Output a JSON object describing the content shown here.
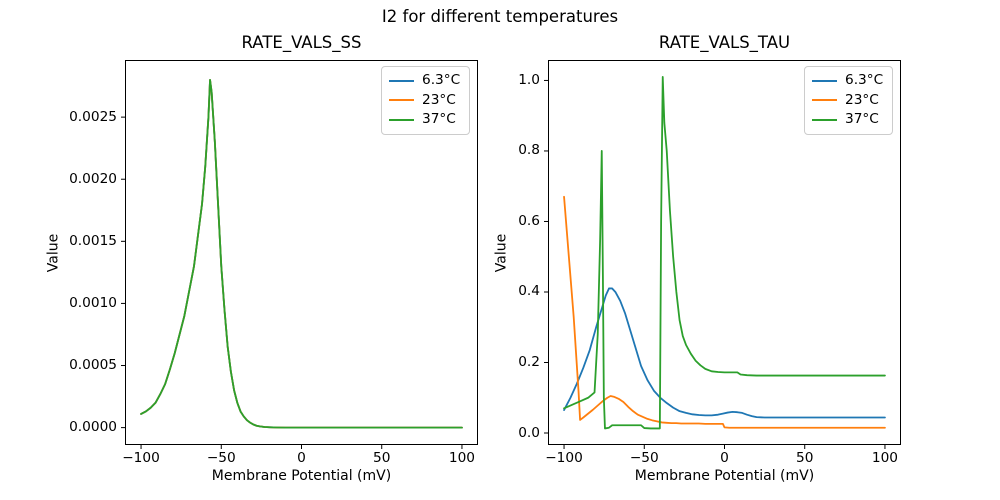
{
  "figure": {
    "suptitle": "I2 for different temperatures",
    "background": "#ffffff"
  },
  "colors": {
    "series_blue": "#1f77b4",
    "series_orange": "#ff7f0e",
    "series_green": "#2ca02c",
    "axis": "#000000",
    "legend_border": "#cccccc",
    "text": "#000000"
  },
  "chart_data": [
    {
      "type": "line",
      "title": "RATE_VALS_SS",
      "xlabel": "Membrane Potential (mV)",
      "ylabel": "Value",
      "xlim": [
        -110,
        110
      ],
      "ylim": [
        -0.00014,
        0.00296
      ],
      "xticks": [
        -100,
        -50,
        0,
        50,
        100
      ],
      "xtick_labels": [
        "−100",
        "−50",
        "0",
        "50",
        "100"
      ],
      "yticks": [
        0,
        0.0005,
        0.001,
        0.0015,
        0.002,
        0.0025
      ],
      "ytick_labels": [
        "0.0000",
        "0.0005",
        "0.0010",
        "0.0015",
        "0.0020",
        "0.0025"
      ],
      "grid": false,
      "legend_position": "upper right",
      "legend_entries": [
        "6.3°C",
        "23°C",
        "37°C"
      ],
      "note": "All three temperature curves overlap exactly; the green 37°C curve is drawn last and hides the others. Bell-shaped peak of ~0.0028 at about −57 mV, ~0 above −25 mV.",
      "series": [
        {
          "name": "6.3°C",
          "color": "#1f77b4",
          "x": [
            -100,
            -97,
            -94,
            -91,
            -88,
            -85,
            -82,
            -79,
            -76,
            -73,
            -70,
            -67,
            -64,
            -62,
            -60,
            -58,
            -57,
            -56,
            -54,
            -52,
            -50,
            -48,
            -46,
            -44,
            -42,
            -40,
            -38,
            -36,
            -34,
            -32,
            -30,
            -28,
            -26,
            -23,
            -20,
            -15,
            -10,
            -5,
            0,
            10,
            20,
            30,
            40,
            50,
            60,
            70,
            80,
            90,
            100
          ],
          "y": [
            0.00011,
            0.00013,
            0.00016,
            0.0002,
            0.00027,
            0.00035,
            0.00047,
            0.0006,
            0.00075,
            0.0009,
            0.0011,
            0.0013,
            0.0016,
            0.0018,
            0.0021,
            0.0025,
            0.0028,
            0.0027,
            0.0023,
            0.0018,
            0.0013,
            0.00095,
            0.00065,
            0.00045,
            0.0003,
            0.0002,
            0.00013,
            9e-05,
            6e-05,
            4e-05,
            2.5e-05,
            1.5e-05,
            1e-05,
            5e-06,
            3e-06,
            1e-06,
            0,
            0,
            0,
            0,
            0,
            0,
            0,
            0,
            0,
            0,
            0,
            0,
            0
          ]
        },
        {
          "name": "23°C",
          "color": "#ff7f0e",
          "x": [
            -100,
            -97,
            -94,
            -91,
            -88,
            -85,
            -82,
            -79,
            -76,
            -73,
            -70,
            -67,
            -64,
            -62,
            -60,
            -58,
            -57,
            -56,
            -54,
            -52,
            -50,
            -48,
            -46,
            -44,
            -42,
            -40,
            -38,
            -36,
            -34,
            -32,
            -30,
            -28,
            -26,
            -23,
            -20,
            -15,
            -10,
            -5,
            0,
            10,
            20,
            30,
            40,
            50,
            60,
            70,
            80,
            90,
            100
          ],
          "y": [
            0.00011,
            0.00013,
            0.00016,
            0.0002,
            0.00027,
            0.00035,
            0.00047,
            0.0006,
            0.00075,
            0.0009,
            0.0011,
            0.0013,
            0.0016,
            0.0018,
            0.0021,
            0.0025,
            0.0028,
            0.0027,
            0.0023,
            0.0018,
            0.0013,
            0.00095,
            0.00065,
            0.00045,
            0.0003,
            0.0002,
            0.00013,
            9e-05,
            6e-05,
            4e-05,
            2.5e-05,
            1.5e-05,
            1e-05,
            5e-06,
            3e-06,
            1e-06,
            0,
            0,
            0,
            0,
            0,
            0,
            0,
            0,
            0,
            0,
            0,
            0,
            0
          ]
        },
        {
          "name": "37°C",
          "color": "#2ca02c",
          "x": [
            -100,
            -97,
            -94,
            -91,
            -88,
            -85,
            -82,
            -79,
            -76,
            -73,
            -70,
            -67,
            -64,
            -62,
            -60,
            -58,
            -57,
            -56,
            -54,
            -52,
            -50,
            -48,
            -46,
            -44,
            -42,
            -40,
            -38,
            -36,
            -34,
            -32,
            -30,
            -28,
            -26,
            -23,
            -20,
            -15,
            -10,
            -5,
            0,
            10,
            20,
            30,
            40,
            50,
            60,
            70,
            80,
            90,
            100
          ],
          "y": [
            0.00011,
            0.00013,
            0.00016,
            0.0002,
            0.00027,
            0.00035,
            0.00047,
            0.0006,
            0.00075,
            0.0009,
            0.0011,
            0.0013,
            0.0016,
            0.0018,
            0.0021,
            0.0025,
            0.0028,
            0.0027,
            0.0023,
            0.0018,
            0.0013,
            0.00095,
            0.00065,
            0.00045,
            0.0003,
            0.0002,
            0.00013,
            9e-05,
            6e-05,
            4e-05,
            2.5e-05,
            1.5e-05,
            1e-05,
            5e-06,
            3e-06,
            1e-06,
            0,
            0,
            0,
            0,
            0,
            0,
            0,
            0,
            0,
            0,
            0,
            0,
            0
          ]
        }
      ]
    },
    {
      "type": "line",
      "title": "RATE_VALS_TAU",
      "xlabel": "Membrane Potential (mV)",
      "ylabel": "Value",
      "xlim": [
        -110,
        110
      ],
      "ylim": [
        -0.034,
        1.058
      ],
      "xticks": [
        -100,
        -50,
        0,
        50,
        100
      ],
      "xtick_labels": [
        "−100",
        "−50",
        "0",
        "50",
        "100"
      ],
      "yticks": [
        0,
        0.2,
        0.4,
        0.6,
        0.8,
        1.0
      ],
      "ytick_labels": [
        "0.0",
        "0.2",
        "0.4",
        "0.6",
        "0.8",
        "1.0"
      ],
      "grid": false,
      "legend_position": "upper right",
      "legend_entries": [
        "6.3°C",
        "23°C",
        "37°C"
      ],
      "note": "Blue: broad hump peaking ~0.41 at −70 mV, settling to 0.044. Orange: starts 0.67 at −100 mV, dips to 0.037 at −90, small hump 0.105 at −71, settles to 0.015. Green: narrow spikes 0.80 at −76.5 mV and 1.01 at −38.5 mV, settles to 0.163.",
      "series": [
        {
          "name": "6.3°C",
          "color": "#1f77b4",
          "x": [
            -100,
            -96,
            -92,
            -88,
            -84,
            -80,
            -77,
            -74,
            -72,
            -70,
            -68,
            -65,
            -62,
            -58,
            -55,
            -52,
            -48,
            -44,
            -40,
            -36,
            -32,
            -28,
            -24,
            -20,
            -16,
            -12,
            -8,
            -4,
            -1,
            2,
            5,
            8,
            11,
            14,
            17,
            20,
            25,
            30,
            40,
            50,
            60,
            70,
            80,
            90,
            100
          ],
          "y": [
            0.065,
            0.1,
            0.14,
            0.185,
            0.235,
            0.3,
            0.345,
            0.39,
            0.41,
            0.41,
            0.4,
            0.375,
            0.34,
            0.28,
            0.235,
            0.19,
            0.15,
            0.12,
            0.1,
            0.085,
            0.072,
            0.062,
            0.057,
            0.053,
            0.051,
            0.05,
            0.05,
            0.052,
            0.055,
            0.058,
            0.06,
            0.059,
            0.057,
            0.052,
            0.048,
            0.045,
            0.044,
            0.044,
            0.044,
            0.044,
            0.044,
            0.044,
            0.044,
            0.044,
            0.044
          ]
        },
        {
          "name": "23°C",
          "color": "#ff7f0e",
          "x": [
            -100,
            -97,
            -94,
            -91,
            -90,
            -88,
            -85,
            -82,
            -79,
            -76,
            -73,
            -71,
            -69,
            -66,
            -63,
            -60,
            -57,
            -54,
            -51,
            -48,
            -45,
            -42,
            -39,
            -36,
            -33,
            -30,
            -27,
            -24,
            -20,
            -16,
            -12,
            -8,
            -4,
            -1,
            0,
            3,
            6,
            10,
            15,
            20,
            30,
            40,
            50,
            60,
            70,
            80,
            90,
            100
          ],
          "y": [
            0.67,
            0.5,
            0.33,
            0.12,
            0.037,
            0.044,
            0.055,
            0.066,
            0.078,
            0.09,
            0.1,
            0.105,
            0.103,
            0.097,
            0.088,
            0.074,
            0.062,
            0.052,
            0.046,
            0.04,
            0.036,
            0.033,
            0.03,
            0.029,
            0.028,
            0.028,
            0.027,
            0.027,
            0.027,
            0.027,
            0.026,
            0.026,
            0.026,
            0.026,
            0.016,
            0.015,
            0.015,
            0.015,
            0.015,
            0.015,
            0.015,
            0.015,
            0.015,
            0.015,
            0.015,
            0.015,
            0.015,
            0.015
          ]
        },
        {
          "name": "37°C",
          "color": "#2ca02c",
          "x": [
            -100,
            -95,
            -90,
            -85,
            -81,
            -79,
            -77.5,
            -76.5,
            -75.8,
            -75.2,
            -74.5,
            -72,
            -70,
            -65,
            -60,
            -55,
            -52,
            -50,
            -46,
            -42,
            -40.3,
            -39.5,
            -38.5,
            -37.5,
            -36,
            -34,
            -32,
            -30,
            -28,
            -26,
            -24,
            -21,
            -18,
            -15,
            -12,
            -8,
            -4,
            0,
            4,
            8,
            10,
            14,
            20,
            30,
            50,
            70,
            100
          ],
          "y": [
            0.07,
            0.08,
            0.09,
            0.1,
            0.115,
            0.28,
            0.55,
            0.8,
            0.45,
            0.1,
            0.013,
            0.015,
            0.022,
            0.022,
            0.022,
            0.022,
            0.022,
            0.014,
            0.013,
            0.013,
            0.013,
            0.6,
            1.01,
            0.88,
            0.8,
            0.63,
            0.5,
            0.4,
            0.32,
            0.275,
            0.25,
            0.225,
            0.205,
            0.192,
            0.182,
            0.175,
            0.173,
            0.172,
            0.172,
            0.172,
            0.166,
            0.164,
            0.163,
            0.163,
            0.163,
            0.163,
            0.163
          ]
        }
      ]
    }
  ]
}
